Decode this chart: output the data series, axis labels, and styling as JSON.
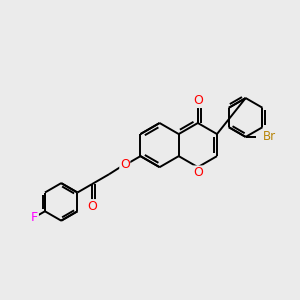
{
  "background_color": "#ebebeb",
  "bond_color": "#000000",
  "bond_width": 1.4,
  "atom_colors": {
    "O": "#ff0000",
    "F": "#ff00ff",
    "Br": "#b8860b"
  },
  "font_size": 8.5,
  "fig_width": 3.0,
  "fig_height": 3.0,
  "dpi": 100,
  "xlim": [
    0,
    12
  ],
  "ylim": [
    0,
    10
  ]
}
